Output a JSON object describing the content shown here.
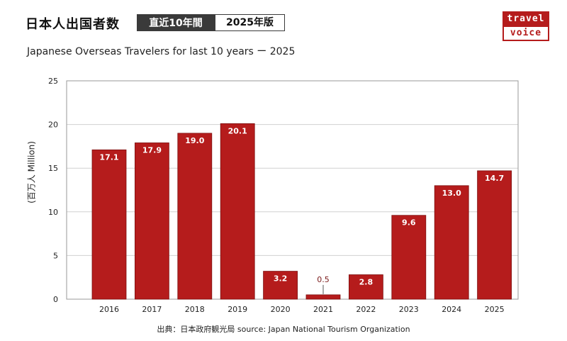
{
  "header": {
    "title": "日本人出国者数",
    "tag_period": "直近10年間",
    "tag_edition": "2025年版",
    "subtitle": "Japanese Overseas Travelers for last 10 years ー 2025"
  },
  "logo": {
    "line1": "travel",
    "line2": "voice"
  },
  "source": "出典：日本政府観光局  source: Japan National Tourism Organization",
  "colors": {
    "bar": "#b51c1c",
    "label_inside": "#ffffff",
    "label_outside": "#7a1a1a",
    "grid": "#d0d0d0"
  },
  "chart_data": {
    "type": "bar",
    "title": "Japanese Overseas Travelers for last 10 years ー 2025",
    "xlabel": "",
    "ylabel": "(百万人 Million)",
    "categories": [
      "2016",
      "2017",
      "2018",
      "2019",
      "2020",
      "2021",
      "2022",
      "2023",
      "2024",
      "2025"
    ],
    "values": [
      17.1,
      17.9,
      19.0,
      20.1,
      3.2,
      0.5,
      2.8,
      9.6,
      13.0,
      14.7
    ],
    "labels": [
      "17.1",
      "17.9",
      "19.0",
      "20.1",
      "3.2",
      "0.5",
      "2.8",
      "9.6",
      "13.0",
      "14.7"
    ],
    "ylim": [
      0,
      25
    ],
    "yticks": [
      "0",
      "5",
      "10",
      "15",
      "20",
      "25"
    ],
    "grid": true,
    "legend": "none"
  }
}
